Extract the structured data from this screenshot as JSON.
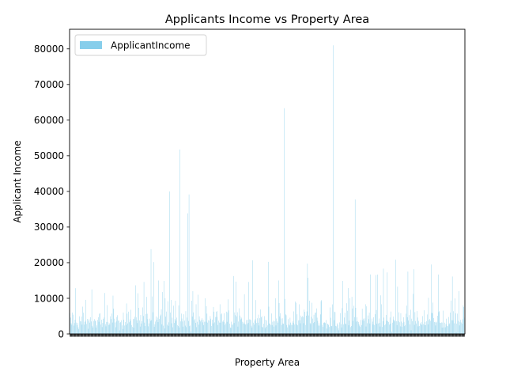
{
  "chart_data": {
    "type": "bar",
    "title": "Applicants Income vs Property Area",
    "xlabel": "Property Area",
    "ylabel": "Applicant Income",
    "ylim": [
      0,
      85500
    ],
    "yticks": [
      0,
      10000,
      20000,
      30000,
      40000,
      50000,
      60000,
      70000,
      80000
    ],
    "grid": false,
    "legend_placement": "top-left",
    "bar_color": "#87ceeb",
    "series": [
      {
        "name": "ApplicantIncome",
        "values": [
          5849,
          4583,
          3000,
          2583,
          6000,
          5417,
          2333,
          3036,
          4006,
          12841,
          3200,
          2500,
          3073,
          1853,
          1299,
          4950,
          3596,
          3510,
          4887,
          2600,
          7660,
          5955,
          2600,
          3365,
          3717,
          9560,
          2799,
          4226,
          1442,
          3750,
          4166,
          3167,
          4692,
          3500,
          12500,
          2275,
          1828,
          3667,
          4166,
          3748,
          3600,
          1800,
          2400,
          3941,
          4695,
          3410,
          5649,
          5821,
          2645,
          4000,
          1928,
          3086,
          4230,
          4616,
          11500,
          2708,
          2132,
          3366,
          8080,
          3357,
          2500,
          3029,
          2609,
          4945,
          4166,
          5726,
          3200,
          10750,
          7100,
          4300,
          3208,
          1875,
          3500,
          4755,
          5266,
          3750,
          3750,
          1000,
          3167,
          3333,
          3846,
          2395,
          1378,
          6000,
          3988,
          2366,
          3333,
          2500,
          8566,
          5695,
          2958,
          6250,
          3273,
          4133,
          3620,
          6782,
          2484,
          1977,
          4188,
          1759,
          4288,
          4843,
          13650,
          4652,
          3816,
          3052,
          11417,
          7333,
          3800,
          2071,
          5316,
          2929,
          3572,
          7451,
          5050,
          14583,
          3167,
          2214,
          5568,
          10408,
          5667,
          4166,
          2137,
          2957,
          4300,
          3692,
          23803,
          3865,
          10513,
          6080,
          20166,
          2014,
          2718,
          3459,
          4895,
          4000,
          4583,
          3316,
          14999,
          4200,
          5042,
          5417,
          6950,
          2698,
          11757,
          2330,
          14866,
          1538,
          10000,
          4860,
          6277,
          2577,
          9166,
          2281,
          3254,
          39999,
          6000,
          9538,
          2980,
          4583,
          1863,
          7933,
          3089,
          4167,
          9323,
          3707,
          4583,
          2439,
          2237,
          8000,
          1820,
          51763,
          3522,
          5708,
          4344,
          3497,
          2045,
          5516,
          3750,
          2333,
          6400,
          1916,
          4600,
          33846,
          3625,
          39147,
          2178,
          2383,
          674,
          9328,
          4885,
          12000,
          6033,
          3858,
          4191,
          3125,
          8333,
          1907,
          3416,
          11000,
          2600,
          4923,
          3992,
          3500,
          3917,
          4408,
          3244,
          3975,
          2479,
          3418,
          10000,
          3430,
          7787,
          5703,
          3173,
          3850,
          150,
          3727,
          5000,
          4283,
          2221,
          4009,
          2971,
          7578,
          6250,
          3250,
          4735,
          6250,
          4758,
          6400,
          2491,
          3716,
          3189,
          8333,
          3155,
          5500,
          5746,
          3463,
          3812,
          3315,
          5819,
          2510,
          2965,
          6250,
          3406,
          6050,
          9703,
          6608,
          2882,
          1809,
          1668,
          3427,
          2583,
          2661,
          16250,
          3083,
          6045,
          5250,
          14683,
          4931,
          6083,
          2060,
          3481,
          7200,
          5166,
          4095,
          4708,
          4333,
          3418,
          2876,
          3237,
          11146,
          2833,
          2620,
          3900,
          2750,
          3993,
          3103,
          14583,
          4100,
          4053,
          3927,
          2301,
          1811,
          20667,
          3158,
          2600,
          3704,
          4124,
          9508,
          3075,
          4400,
          3153,
          5417,
          2383,
          4416,
          6875,
          4666,
          5000,
          2014,
          1800,
          2875,
          5000,
          1625,
          4000,
          2000,
          3762,
          2400,
          20233,
          7667,
          2917,
          2927,
          2507,
          5746,
          2473,
          3399,
          3717,
          2058,
          3541,
          10000,
          2400,
          4342,
          3601,
          3166,
          15000,
          8666,
          4917,
          5818,
          4333,
          2500,
          4384,
          2935,
          2833,
          63337,
          9833,
          5503,
          5250,
          2500,
          1830,
          4160,
          2647,
          2378,
          4554,
          3173,
          2583,
          2499,
          3523,
          3083,
          6333,
          2625,
          9083,
          8750,
          2666,
          5500,
          2423,
          3813,
          8333,
          3875,
          3000,
          5167,
          4723,
          5000,
          4750,
          3013,
          6822,
          6216,
          2500,
          5124,
          6325,
          19730,
          15759,
          5185,
          9323,
          3062,
          2764,
          4817,
          8750,
          4310,
          3069,
          5391,
          3333,
          5941,
          6000,
          7167,
          4566,
          3667,
          2346,
          3010,
          2333,
          5488,
          9167,
          9504,
          2583,
          1993,
          3100,
          3276,
          3180,
          3033,
          3902,
          1500,
          2889,
          2755,
          2500,
          1963,
          7441,
          4547,
          2167,
          2213,
          8300,
          81000,
          3867,
          6256,
          6096,
          2253,
          2149,
          2995,
          2600,
          1600,
          1025,
          3246,
          5829,
          2720,
          1820,
          7250,
          14880,
          2666,
          4606,
          5935,
          2920,
          2717,
          8624,
          6500,
          12876,
          2425,
          3750,
          10047,
          1926,
          2213,
          10416,
          7142,
          3660,
          7901,
          4707,
          37719,
          7333,
          3466,
          4652,
          3539,
          3340,
          2769,
          2309,
          1958,
          3948,
          2483,
          7085,
          3859,
          4301,
          3708,
          4354,
          8334,
          2083,
          7740,
          3015,
          5191,
          4166,
          6000,
          2947,
          16692,
          210,
          4333,
          3450,
          2653,
          4691,
          2500,
          5532,
          16525,
          6700,
          2873,
          16667,
          2947,
          4350,
          3095,
          2083,
          10833,
          8333,
          1958,
          3547,
          18333,
          4583,
          2435,
          2699,
          5333,
          3691,
          17263,
          3597,
          3326,
          2600,
          4625,
          2895,
          6283,
          645,
          3159,
          4865,
          4050,
          3814,
          3510,
          20833,
          3583,
          2479,
          13262,
          3598,
          6065,
          3283,
          2130,
          5815,
          3466,
          2031,
          3074,
          4683,
          3400,
          2192,
          2500,
          5677,
          7948,
          4680,
          17500,
          3775,
          5285,
          2679,
          6783,
          1025,
          4281,
          3588,
          11250,
          18165,
          2550,
          6133,
          3617,
          2917,
          6417,
          4608,
          2138,
          3652,
          2239,
          3017,
          2768,
          3358,
          2526,
          5000,
          2785,
          6633,
          2492,
          3333,
          2454,
          3593,
          5468,
          2667,
          10139,
          3887,
          4180,
          3675,
          19484,
          5923,
          5800,
          8799,
          4467,
          3333,
          3400,
          2378,
          3166,
          3417,
          5116,
          16666,
          6125,
          6406,
          3159,
          3087,
          3229,
          1782,
          3182,
          6540,
          1836,
          3166,
          1880,
          2787,
          4283,
          2297,
          2165,
          4750,
          2726,
          3000,
          6000,
          9357,
          3859,
          16120,
          3833,
          6383,
          2987,
          9963,
          5780,
          416,
          2894,
          5703,
          3676,
          12000,
          2400,
          3400,
          3987,
          3232,
          2900,
          4106,
          8072,
          7583,
          4583
        ]
      }
    ]
  }
}
